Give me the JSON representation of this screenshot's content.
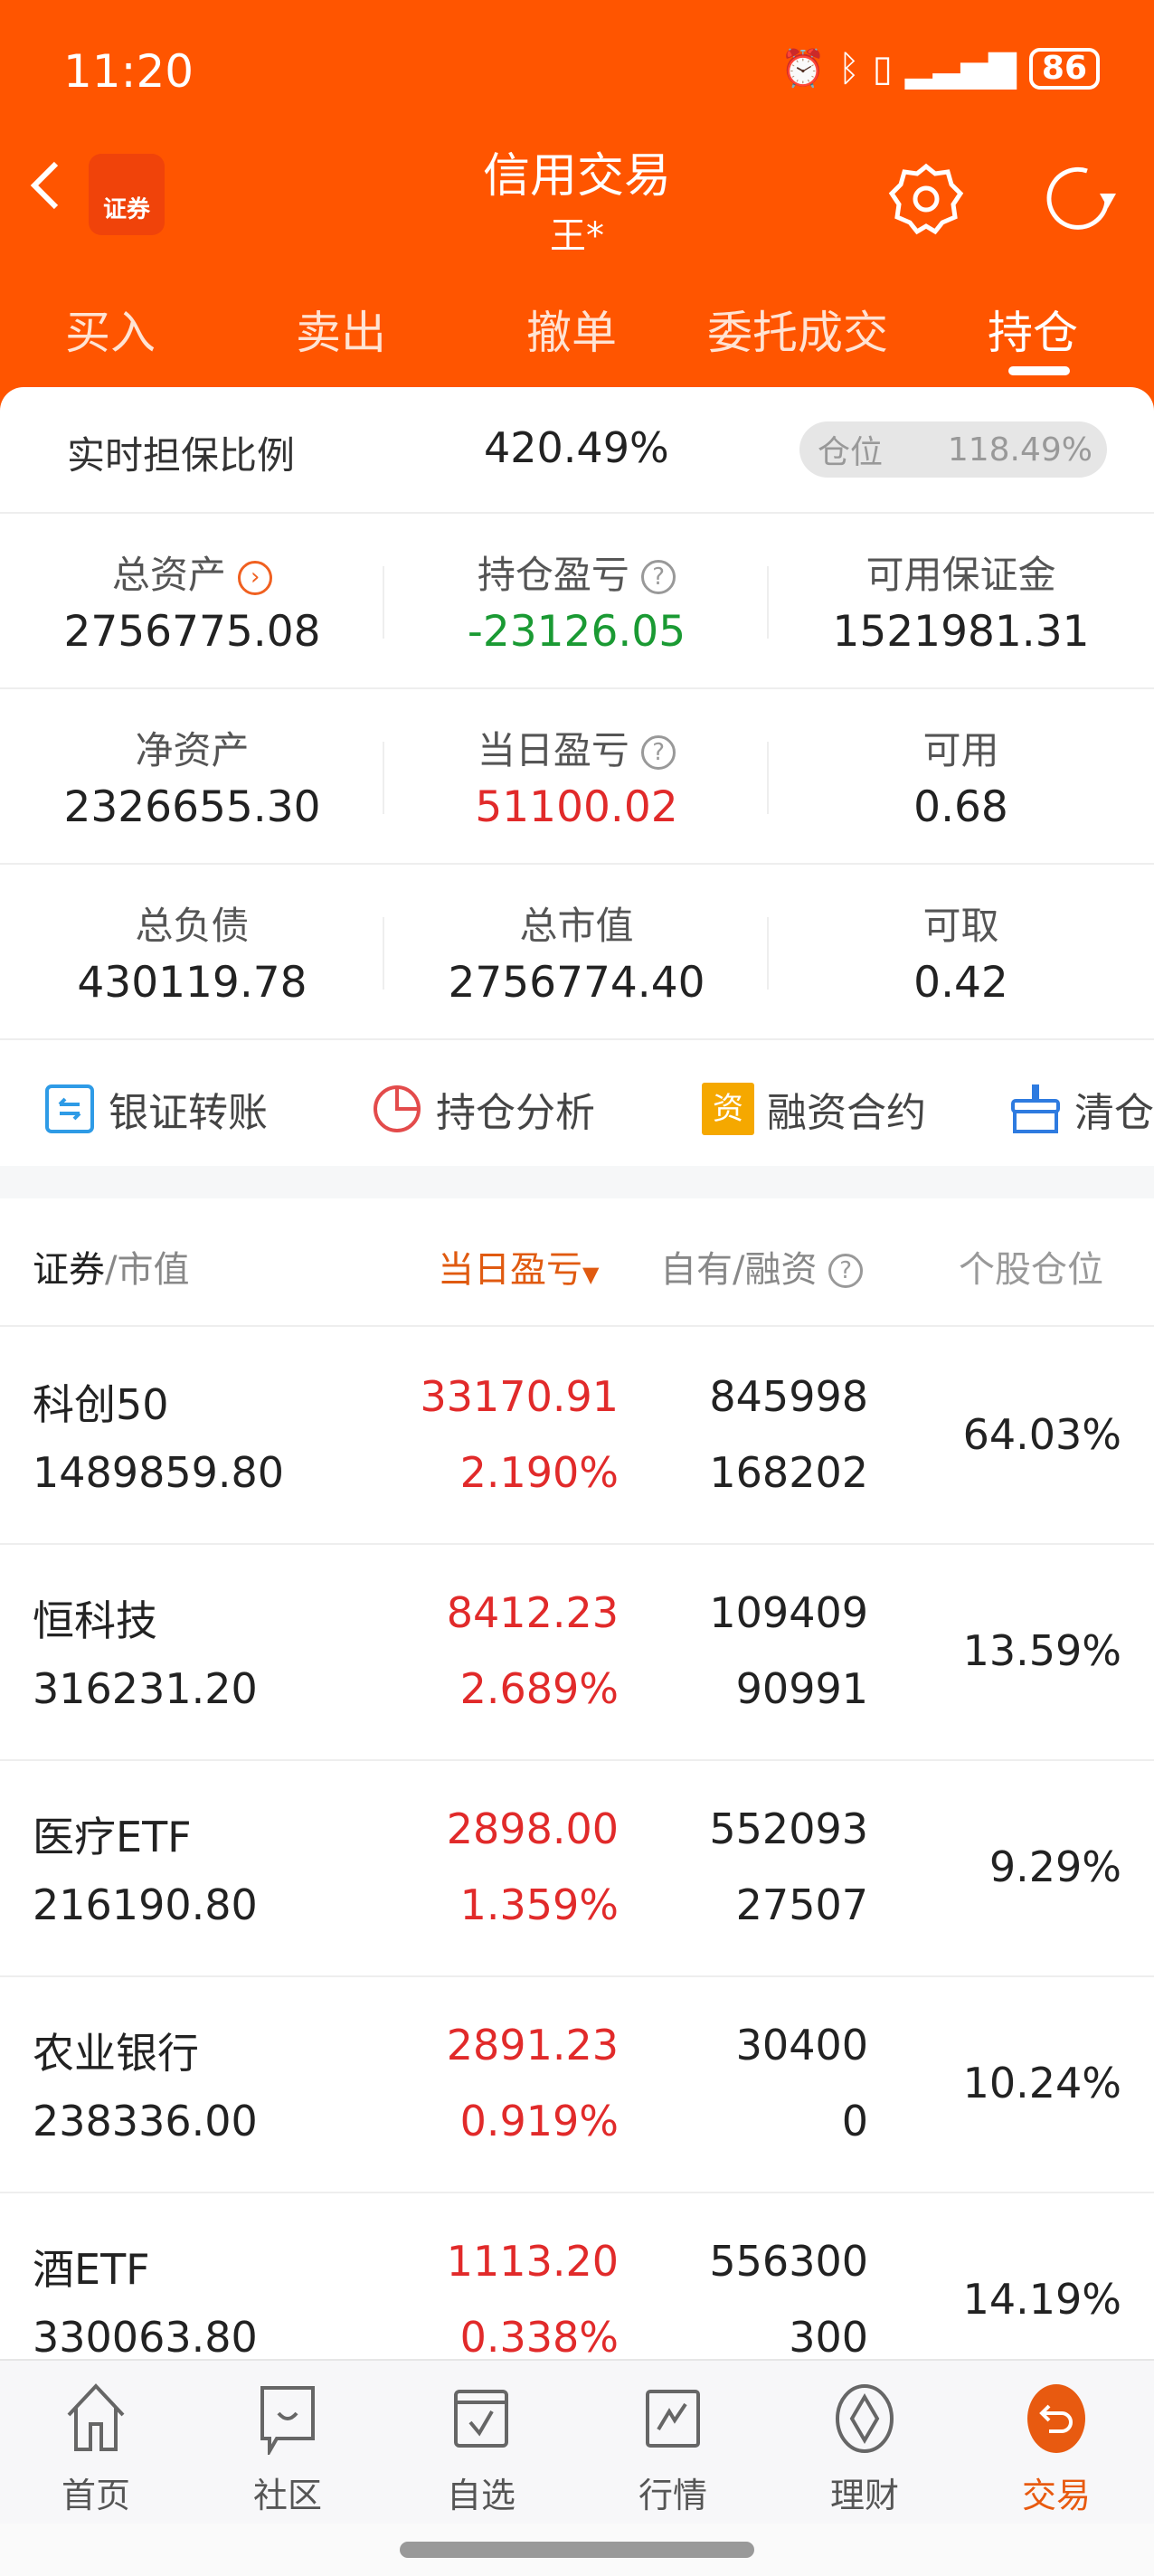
{
  "status": {
    "time": "11:20",
    "battery": "86"
  },
  "header": {
    "title": "信用交易",
    "subtitle": "王*",
    "logo_text": "证券"
  },
  "tabs": [
    {
      "label": "买入"
    },
    {
      "label": "卖出"
    },
    {
      "label": "撤单"
    },
    {
      "label": "委托成交"
    },
    {
      "label": "持仓",
      "active": true
    }
  ],
  "ratio": {
    "label": "实时担保比例",
    "value": "420.49%",
    "position_label": "仓位",
    "position_value": "118.49%"
  },
  "summary": [
    [
      {
        "label": "总资产",
        "value": "2756775.08"
      },
      {
        "label": "持仓盈亏",
        "value": "-23126.05"
      },
      {
        "label": "可用保证金",
        "value": "1521981.31"
      }
    ],
    [
      {
        "label": "净资产",
        "value": "2326655.30"
      },
      {
        "label": "当日盈亏",
        "value": "51100.02"
      },
      {
        "label": "可用",
        "value": "0.68"
      }
    ],
    [
      {
        "label": "总负债",
        "value": "430119.78"
      },
      {
        "label": "总市值",
        "value": "2756774.40"
      },
      {
        "label": "可取",
        "value": "0.42"
      }
    ]
  ],
  "actions": [
    {
      "label": "银证转账"
    },
    {
      "label": "持仓分析"
    },
    {
      "label": "融资合约",
      "icon_text": "资"
    },
    {
      "label": "清仓"
    }
  ],
  "table": {
    "headers": {
      "security": "证券",
      "market_value": "/市值",
      "daily_pnl": "当日盈亏",
      "own_margin": "自有/融资",
      "position": "个股仓位"
    },
    "rows": [
      {
        "name": "科创50",
        "market_value": "1489859.80",
        "pnl": "33170.91",
        "pnl_pct": "2.190%",
        "own": "845998",
        "margin": "168202",
        "position": "64.03%"
      },
      {
        "name": "恒科技",
        "market_value": "316231.20",
        "pnl": "8412.23",
        "pnl_pct": "2.689%",
        "own": "109409",
        "margin": "90991",
        "position": "13.59%"
      },
      {
        "name": "医疗ETF",
        "market_value": "216190.80",
        "pnl": "2898.00",
        "pnl_pct": "1.359%",
        "own": "552093",
        "margin": "27507",
        "position": "9.29%"
      },
      {
        "name": "农业银行",
        "market_value": "238336.00",
        "pnl": "2891.23",
        "pnl_pct": "0.919%",
        "own": "30400",
        "margin": "0",
        "position": "10.24%"
      },
      {
        "name": "酒ETF",
        "market_value": "330063.80",
        "pnl": "1113.20",
        "pnl_pct": "0.338%",
        "own": "556300",
        "margin": "300",
        "position": "14.19%"
      }
    ]
  },
  "bottom_nav": [
    {
      "label": "首页"
    },
    {
      "label": "社区"
    },
    {
      "label": "自选"
    },
    {
      "label": "行情"
    },
    {
      "label": "理财"
    },
    {
      "label": "交易",
      "active": true
    }
  ],
  "colors": {
    "brand": "#FF5500",
    "up": "#E12A2A",
    "down": "#1A9A33"
  }
}
